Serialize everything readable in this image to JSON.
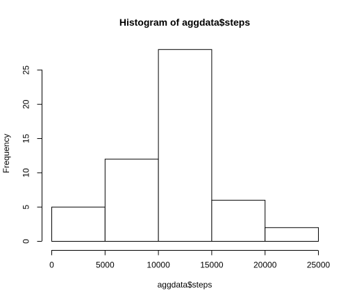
{
  "chart_data": {
    "type": "bar",
    "title": "Histogram of aggdata$steps",
    "xlabel": "aggdata$steps",
    "ylabel": "Frequency",
    "bins": [
      {
        "from": 0,
        "to": 5000,
        "count": 5
      },
      {
        "from": 5000,
        "to": 10000,
        "count": 12
      },
      {
        "from": 10000,
        "to": 15000,
        "count": 28
      },
      {
        "from": 15000,
        "to": 20000,
        "count": 6
      },
      {
        "from": 20000,
        "to": 25000,
        "count": 2
      }
    ],
    "xlim": [
      0,
      25000
    ],
    "ylim": [
      0,
      28
    ],
    "x_ticks": [
      0,
      5000,
      10000,
      15000,
      20000,
      25000
    ],
    "y_ticks": [
      0,
      5,
      10,
      15,
      20,
      25
    ],
    "grid": false,
    "bar_fill": "#ffffff",
    "bar_stroke": "#000000"
  }
}
